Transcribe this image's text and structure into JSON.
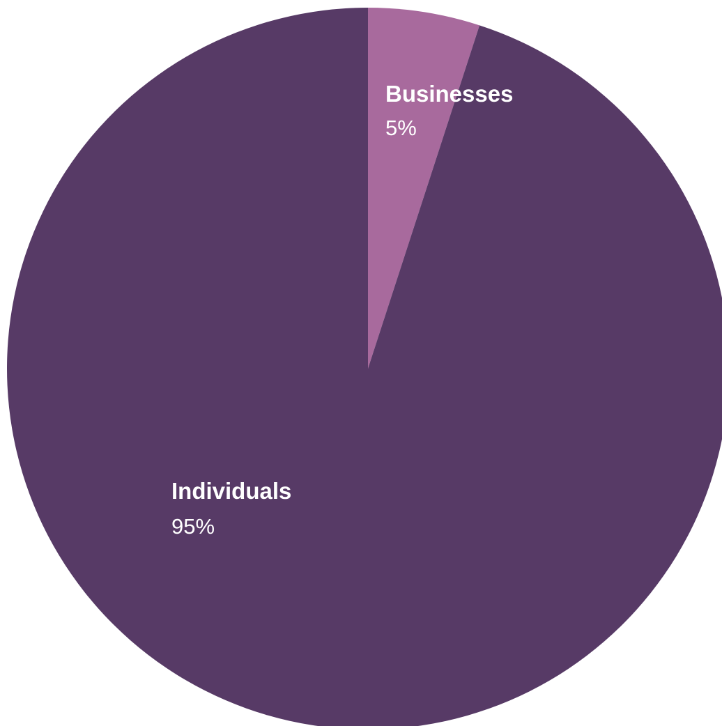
{
  "chart_data": {
    "type": "pie",
    "title": "",
    "start_angle": "12-o'clock",
    "direction": "clockwise",
    "slices": [
      {
        "label": "Businesses",
        "value": 5,
        "value_label": "5%",
        "color": "#a86a9d"
      },
      {
        "label": "Individuals",
        "value": 95,
        "value_label": "95%",
        "color": "#573a66"
      }
    ]
  }
}
